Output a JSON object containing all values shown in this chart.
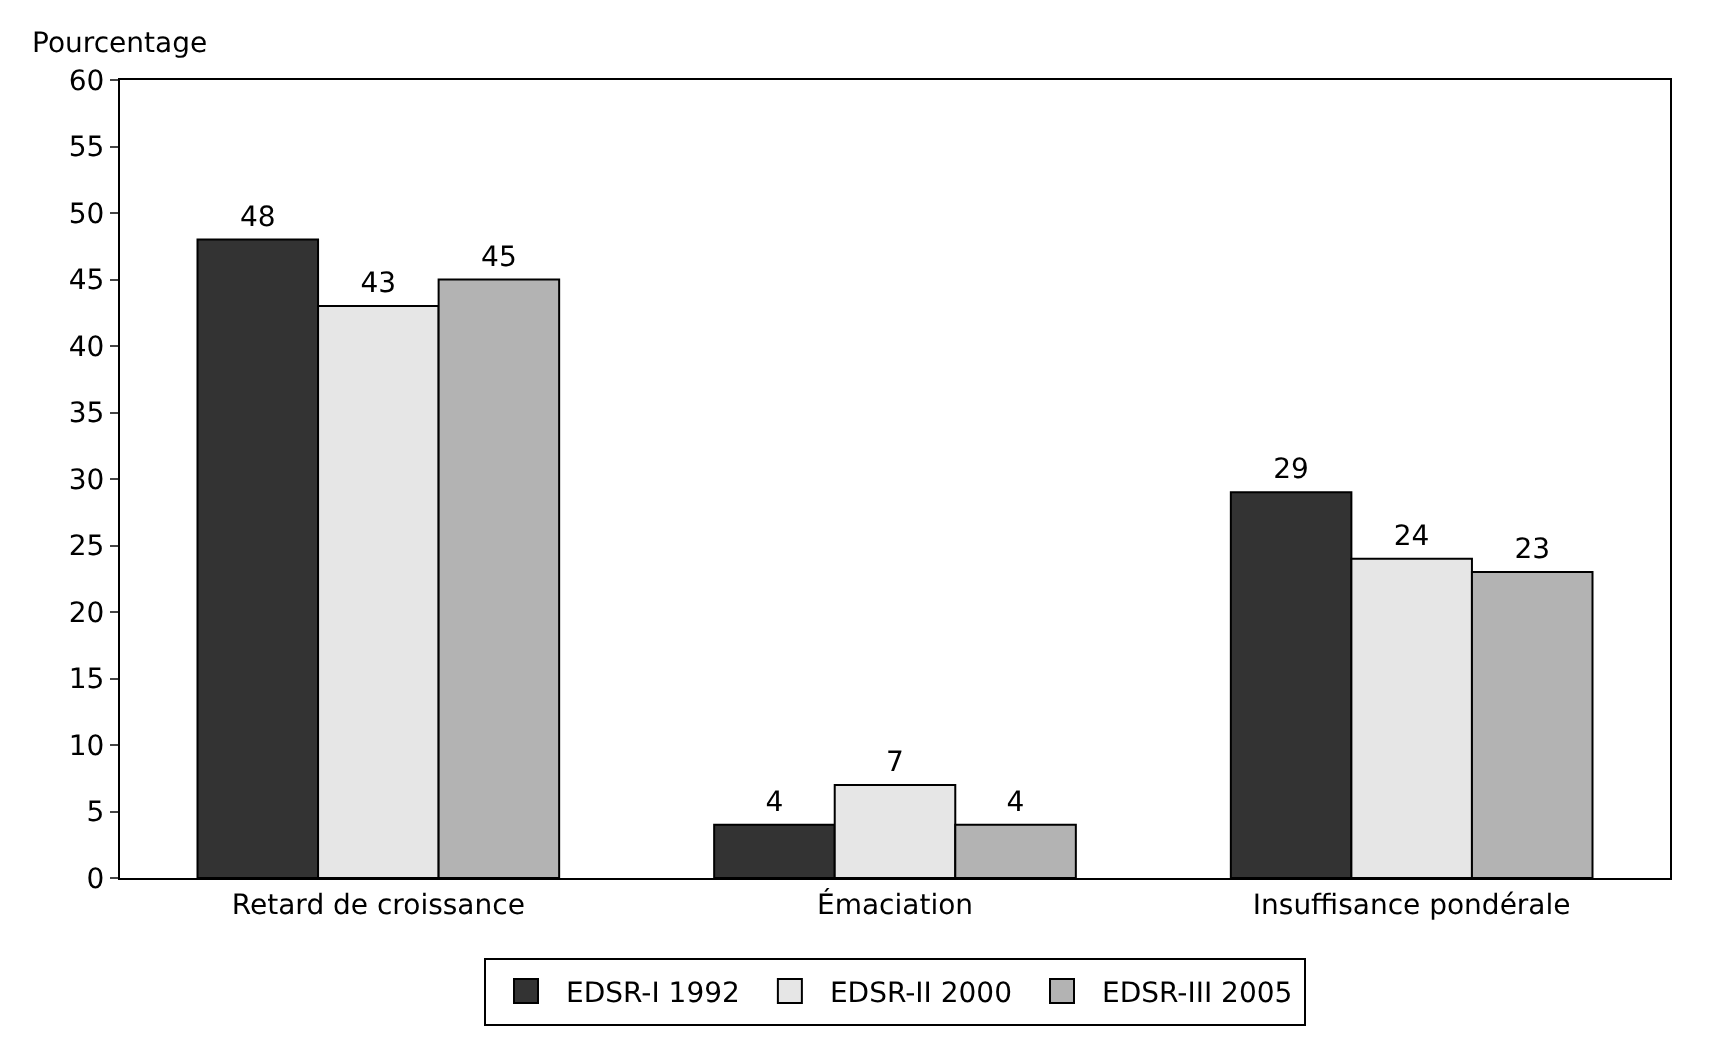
{
  "chart_data": {
    "type": "bar",
    "ylabel": "Pourcentage",
    "categories": [
      "Retard de croissance",
      "Émaciation",
      "Insuffisance pondérale"
    ],
    "series": [
      {
        "name": "EDSR-I 1992",
        "color": "#333333",
        "values": [
          48,
          4,
          29
        ]
      },
      {
        "name": "EDSR-II 2000",
        "color": "#e6e6e6",
        "values": [
          43,
          7,
          24
        ]
      },
      {
        "name": "EDSR-III 2005",
        "color": "#b3b3b3",
        "values": [
          45,
          4,
          23
        ]
      }
    ],
    "ylim": [
      0,
      60
    ],
    "yticks": [
      0,
      5,
      10,
      15,
      20,
      25,
      30,
      35,
      40,
      45,
      50,
      55,
      60
    ],
    "grid": false,
    "legend": "bottom",
    "data_labels": true
  }
}
